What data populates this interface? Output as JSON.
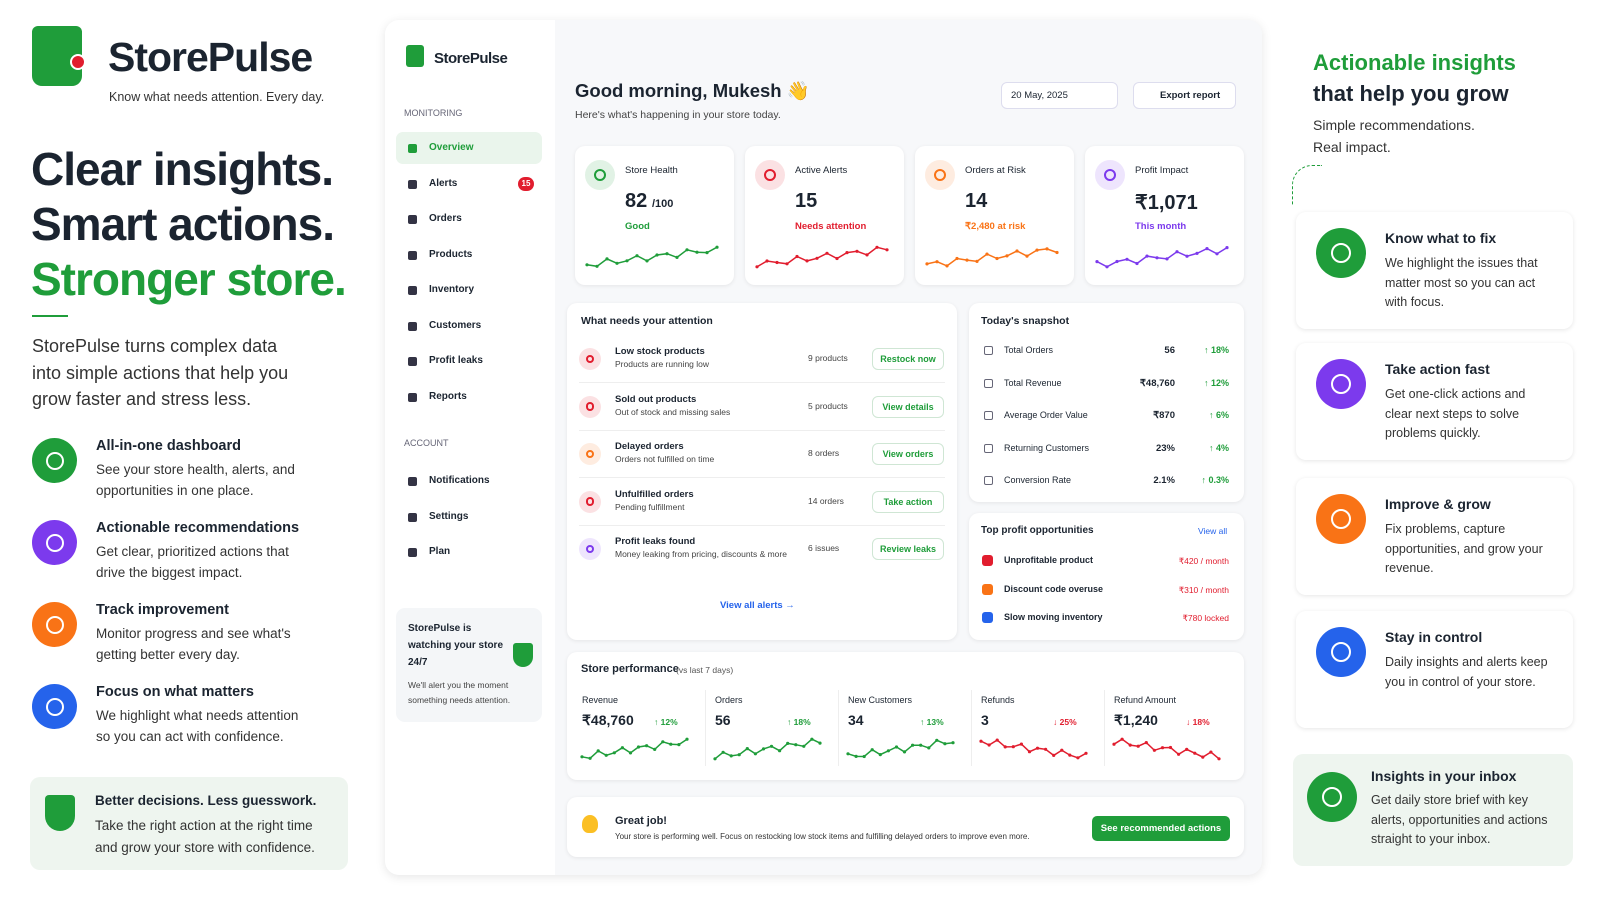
{
  "brand": {
    "name": "StorePulse",
    "tagline": "Know what needs attention. Every day."
  },
  "hero": {
    "lines": [
      "Clear insights.",
      "Smart actions.",
      "Stronger store."
    ],
    "description": "StorePulse turns complex data into simple actions that help you grow faster and stress less."
  },
  "features": [
    {
      "title": "All-in-one dashboard",
      "text": "See your store health, alerts, and opportunities in one place.",
      "color": "#1f9d3a"
    },
    {
      "title": "Actionable recommendations",
      "text": "Get clear, prioritized actions that drive the biggest impact.",
      "color": "#7c3aed"
    },
    {
      "title": "Track improvement",
      "text": "Monitor progress and see what's getting better every day.",
      "color": "#f97316"
    },
    {
      "title": "Focus on what matters",
      "text": "We highlight what needs attention so you can act with confidence.",
      "color": "#2563eb"
    }
  ],
  "callout": {
    "title": "Better decisions. Less guesswork.",
    "text": "Take the right action at the right time and grow your store with confidence."
  },
  "sidebar": {
    "brand": "StorePulse",
    "monitoring_label": "MONITORING",
    "nav": [
      {
        "label": "Overview"
      },
      {
        "label": "Alerts",
        "badge": "15"
      },
      {
        "label": "Orders"
      },
      {
        "label": "Products"
      },
      {
        "label": "Inventory"
      },
      {
        "label": "Customers"
      },
      {
        "label": "Profit leaks"
      },
      {
        "label": "Reports"
      }
    ],
    "account_label": "ACCOUNT",
    "account_nav": [
      {
        "label": "Notifications"
      },
      {
        "label": "Settings"
      },
      {
        "label": "Plan"
      }
    ],
    "watch": {
      "title": "StorePulse is watching your store 24/7",
      "text": "We'll alert you the moment something needs attention."
    }
  },
  "header": {
    "greeting": "Good morning, Mukesh 👋",
    "subtitle": "Here's what's happening in your store today.",
    "date": "20 May, 2025",
    "export": "Export report"
  },
  "kpis": [
    {
      "label": "Store Health",
      "value": "82",
      "unit": "/100",
      "status": "Good",
      "color": "#1f9d3a"
    },
    {
      "label": "Active Alerts",
      "value": "15",
      "status": "Needs attention",
      "color": "#e11d2e"
    },
    {
      "label": "Orders at Risk",
      "value": "14",
      "status": "₹2,480 at risk",
      "color": "#f97316"
    },
    {
      "label": "Profit Impact",
      "value": "₹1,071",
      "status": "This month",
      "color": "#7c3aed"
    }
  ],
  "attention": {
    "title": "What needs your attention",
    "items": [
      {
        "title": "Low stock products",
        "subtitle": "Products are running low",
        "count": "9 products",
        "action": "Restock now"
      },
      {
        "title": "Sold out products",
        "subtitle": "Out of stock and missing sales",
        "count": "5 products",
        "action": "View details"
      },
      {
        "title": "Delayed orders",
        "subtitle": "Orders not fulfilled on time",
        "count": "8 orders",
        "action": "View orders"
      },
      {
        "title": "Unfulfilled orders",
        "subtitle": "Pending fulfillment",
        "count": "14 orders",
        "action": "Take action"
      },
      {
        "title": "Profit leaks found",
        "subtitle": "Money leaking from pricing, discounts & more",
        "count": "6 issues",
        "action": "Review leaks"
      }
    ],
    "view_all": "View all alerts →"
  },
  "snapshot": {
    "title": "Today's snapshot",
    "rows": [
      {
        "label": "Total Orders",
        "value": "56",
        "change": "↑ 18%"
      },
      {
        "label": "Total Revenue",
        "value": "₹48,760",
        "change": "↑ 12%"
      },
      {
        "label": "Average Order Value",
        "value": "₹870",
        "change": "↑ 6%"
      },
      {
        "label": "Returning Customers",
        "value": "23%",
        "change": "↑ 4%"
      },
      {
        "label": "Conversion Rate",
        "value": "2.1%",
        "change": "↑ 0.3%"
      }
    ]
  },
  "opportunities": {
    "title": "Top profit opportunities",
    "view_all": "View all",
    "items": [
      {
        "label": "Unprofitable product",
        "value": "₹420 / month"
      },
      {
        "label": "Discount code overuse",
        "value": "₹310 / month"
      },
      {
        "label": "Slow moving inventory",
        "value": "₹780 locked"
      }
    ]
  },
  "performance": {
    "title": "Store performance",
    "period": "(vs last 7 days)",
    "metrics": [
      {
        "label": "Revenue",
        "value": "₹48,760",
        "change": "↑ 12%"
      },
      {
        "label": "Orders",
        "value": "56",
        "change": "↑ 18%"
      },
      {
        "label": "New Customers",
        "value": "34",
        "change": "↑ 13%"
      },
      {
        "label": "Refunds",
        "value": "3",
        "change": "↓ 25%"
      },
      {
        "label": "Refund Amount",
        "value": "₹1,240",
        "change": "↓ 18%"
      }
    ]
  },
  "banner": {
    "title": "Great job!",
    "text": "Your store is performing well. Focus on restocking low stock items and fulfilling delayed orders to improve even more.",
    "button": "See recommended actions"
  },
  "right": {
    "heading": [
      "Actionable insights",
      "that help you grow"
    ],
    "subheading": [
      "Simple recommendations.",
      "Real impact."
    ],
    "cards": [
      {
        "title": "Know what to fix",
        "text": "We highlight the issues that matter most so you can act with focus.",
        "color": "#1f9d3a"
      },
      {
        "title": "Take action fast",
        "text": "Get one-click actions and clear next steps to solve problems quickly.",
        "color": "#7c3aed"
      },
      {
        "title": "Improve & grow",
        "text": "Fix problems, capture opportunities, and grow your revenue.",
        "color": "#f97316"
      },
      {
        "title": "Stay in control",
        "text": "Daily insights and alerts keep you in control of your store.",
        "color": "#2563eb"
      },
      {
        "title": "Insights in your inbox",
        "text": "Get daily store brief with key alerts, opportunities and actions straight to your inbox.",
        "color": "#1f9d3a"
      }
    ]
  }
}
